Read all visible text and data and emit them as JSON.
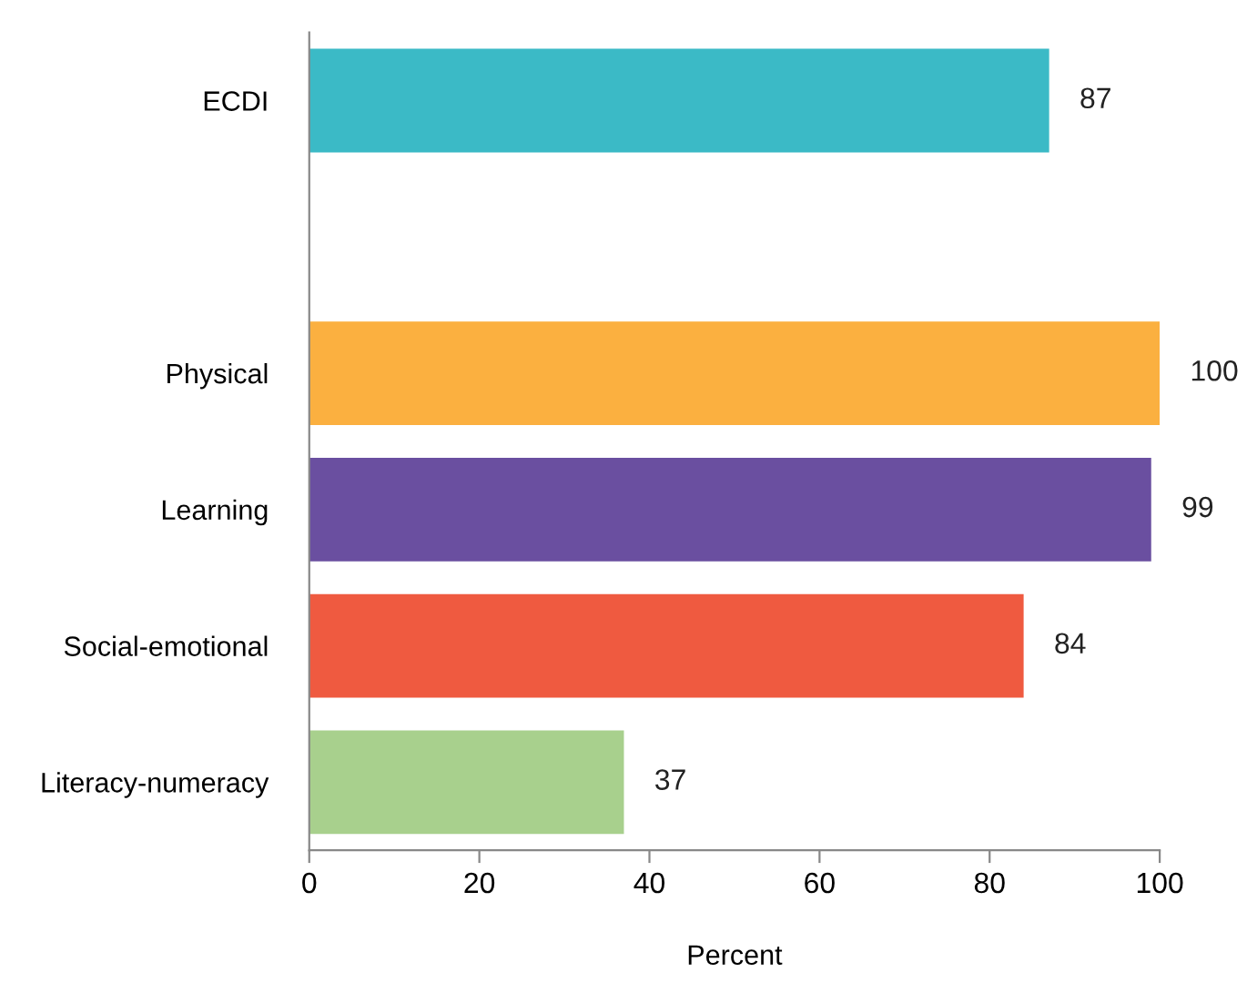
{
  "chart_data": {
    "type": "bar",
    "orientation": "horizontal",
    "categories": [
      "ECDI",
      null,
      "Physical",
      "Learning",
      "Social-emotional",
      "Literacy-numeracy"
    ],
    "values": [
      87,
      null,
      100,
      99,
      84,
      37
    ],
    "colors": [
      "#3bbac6",
      null,
      "#fbb040",
      "#6a4fa0",
      "#ef5a40",
      "#a8d08d"
    ],
    "xlabel": "Percent",
    "xlim": [
      0,
      100
    ],
    "xticks": [
      0,
      20,
      40,
      60,
      80,
      100
    ],
    "data_labels": true,
    "grid": false,
    "legend": false
  }
}
